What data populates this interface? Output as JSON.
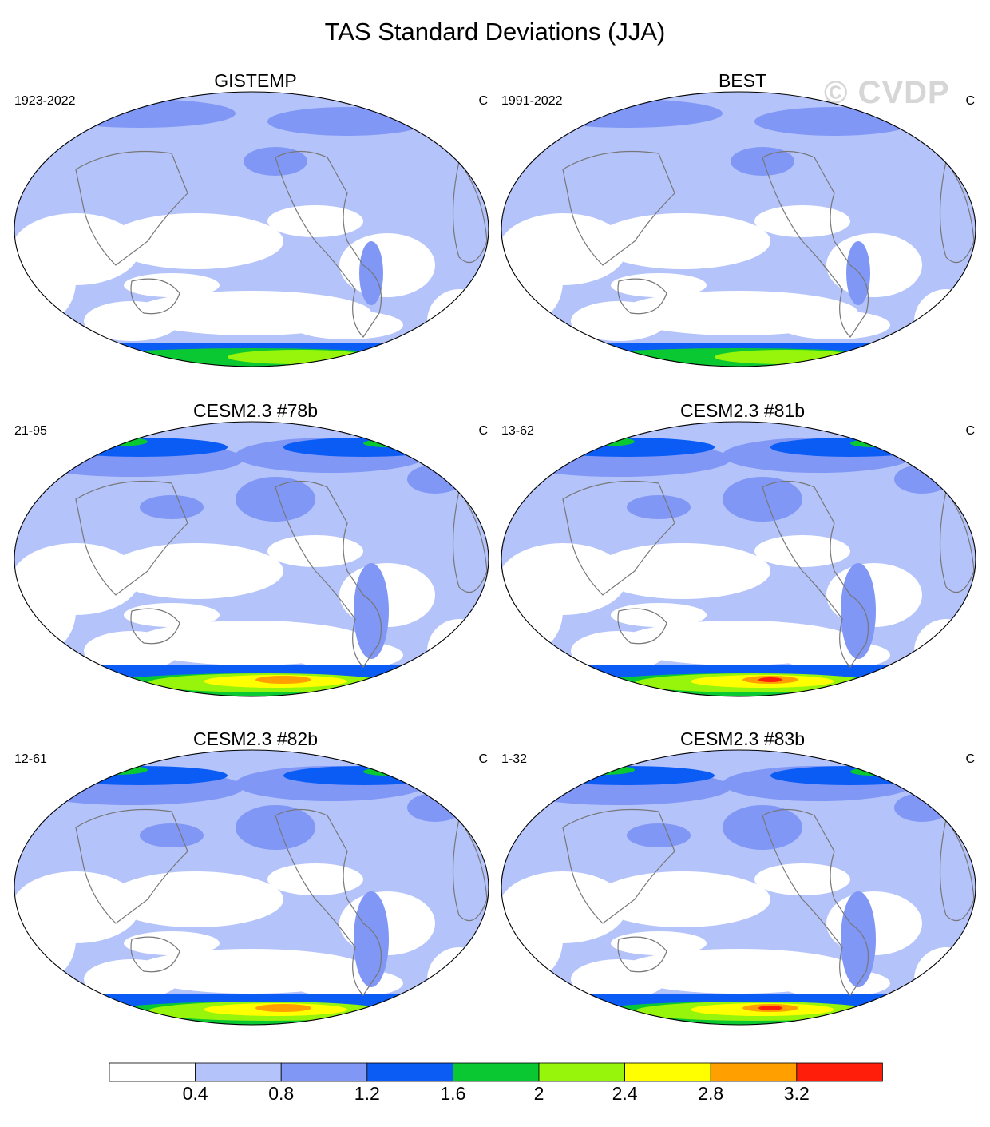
{
  "title": "TAS Standard Deviations (JJA)",
  "watermark": "© CVDP",
  "panels": [
    {
      "title": "GISTEMP",
      "left_label": "1923-2022",
      "right_label": "C"
    },
    {
      "title": "BEST",
      "left_label": "1991-2022",
      "right_label": "C"
    },
    {
      "title": "CESM2.3 #78b",
      "left_label": "21-95",
      "right_label": "C"
    },
    {
      "title": "CESM2.3 #81b",
      "left_label": "13-62",
      "right_label": "C"
    },
    {
      "title": "CESM2.3 #82b",
      "left_label": "12-61",
      "right_label": "C"
    },
    {
      "title": "CESM2.3 #83b",
      "left_label": "1-32",
      "right_label": "C"
    }
  ],
  "colorbar": {
    "colors": [
      "#ffffff",
      "#b4c3fa",
      "#8097f5",
      "#0a5cf5",
      "#0ac832",
      "#96f50a",
      "#ffff00",
      "#ffa000",
      "#ff1e0a"
    ],
    "tick_labels": [
      "0.4",
      "0.8",
      "1.2",
      "1.6",
      "2",
      "2.4",
      "2.8",
      "3.2"
    ]
  }
}
